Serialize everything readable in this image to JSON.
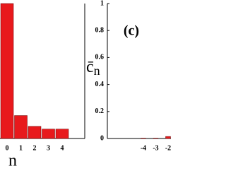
{
  "chart_data": [
    {
      "type": "bar",
      "categories": [
        "0",
        "1",
        "2",
        "3",
        "4"
      ],
      "values": [
        1.0,
        0.17,
        0.09,
        0.07,
        0.07
      ],
      "color": "#e8191c",
      "ylim": [
        0,
        1
      ],
      "xlabel": "n"
    },
    {
      "type": "bar",
      "categories": [
        "-4",
        "-3",
        "-2"
      ],
      "values": [
        0.003,
        0.003,
        0.015
      ],
      "color": "#e8191c",
      "ylim": [
        0,
        1
      ],
      "yticks": [
        0,
        0.2,
        0.4,
        0.6,
        0.8,
        1
      ],
      "ylabel": "c̄",
      "ylabel_subscript": "n",
      "annotation": "(c)"
    }
  ]
}
